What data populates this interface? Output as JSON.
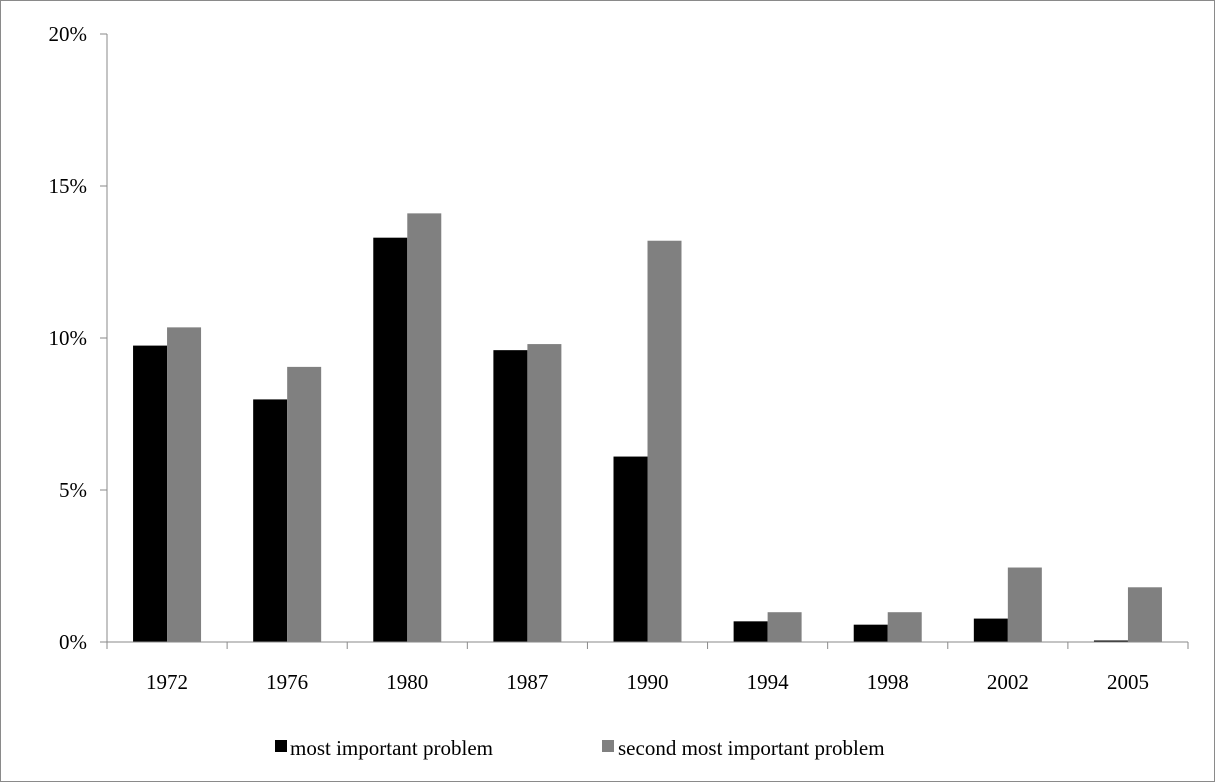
{
  "chart_data": {
    "type": "bar",
    "categories": [
      "1972",
      "1976",
      "1980",
      "1987",
      "1990",
      "1994",
      "1998",
      "2002",
      "2005"
    ],
    "series": [
      {
        "name": "most important problem",
        "color": "#000000",
        "values": [
          9.75,
          7.98,
          13.3,
          9.6,
          6.1,
          0.68,
          0.57,
          0.77,
          0.05
        ]
      },
      {
        "name": "second most important problem",
        "color": "#808080",
        "values": [
          10.35,
          9.05,
          14.1,
          9.8,
          13.2,
          0.98,
          0.98,
          2.45,
          1.8
        ]
      }
    ],
    "y_ticks": [
      "0%",
      "5%",
      "10%",
      "15%",
      "20%"
    ],
    "ylim": [
      0,
      20
    ],
    "y_unit": "%",
    "grid": false,
    "legend_position": "bottom-center",
    "title": "",
    "xlabel": "",
    "ylabel": ""
  }
}
